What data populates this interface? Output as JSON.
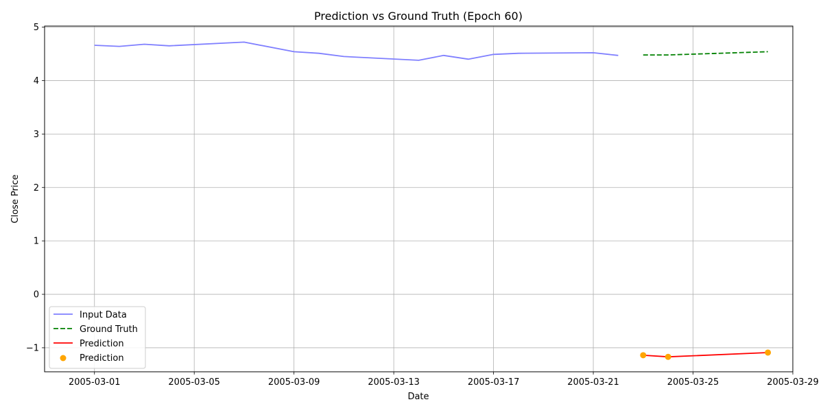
{
  "chart_data": {
    "type": "line",
    "title": "Prediction vs Ground Truth (Epoch 60)",
    "xlabel": "Date",
    "ylabel": "Close Price",
    "xlim": [
      "2005-02-27",
      "2005-03-29"
    ],
    "ylim": [
      -1.45,
      5.02
    ],
    "x_ticks": [
      "2005-03-01",
      "2005-03-05",
      "2005-03-09",
      "2005-03-13",
      "2005-03-17",
      "2005-03-21",
      "2005-03-25",
      "2005-03-29"
    ],
    "y_ticks": [
      -1,
      0,
      1,
      2,
      3,
      4,
      5
    ],
    "grid": true,
    "legend_position": "lower-left",
    "series": [
      {
        "name": "Input Data",
        "kind": "line",
        "style": "solid",
        "color": "#7f7fff",
        "x": [
          "2005-03-01",
          "2005-03-02",
          "2005-03-03",
          "2005-03-04",
          "2005-03-07",
          "2005-03-09",
          "2005-03-10",
          "2005-03-11",
          "2005-03-14",
          "2005-03-15",
          "2005-03-16",
          "2005-03-17",
          "2005-03-18",
          "2005-03-21",
          "2005-03-22"
        ],
        "y": [
          4.66,
          4.64,
          4.68,
          4.65,
          4.72,
          4.54,
          4.51,
          4.45,
          4.38,
          4.47,
          4.4,
          4.49,
          4.51,
          4.52,
          4.47
        ]
      },
      {
        "name": "Ground Truth",
        "kind": "line",
        "style": "dashed",
        "color": "#008000",
        "x": [
          "2005-03-23",
          "2005-03-24",
          "2005-03-28"
        ],
        "y": [
          4.48,
          4.48,
          4.54
        ]
      },
      {
        "name": "Prediction",
        "kind": "line",
        "style": "solid",
        "color": "#ff0000",
        "x": [
          "2005-03-23",
          "2005-03-24",
          "2005-03-28"
        ],
        "y": [
          -1.14,
          -1.17,
          -1.09
        ]
      },
      {
        "name": "Prediction",
        "kind": "scatter",
        "color": "#ffa500",
        "x": [
          "2005-03-23",
          "2005-03-24",
          "2005-03-28"
        ],
        "y": [
          -1.14,
          -1.17,
          -1.09
        ]
      }
    ]
  }
}
